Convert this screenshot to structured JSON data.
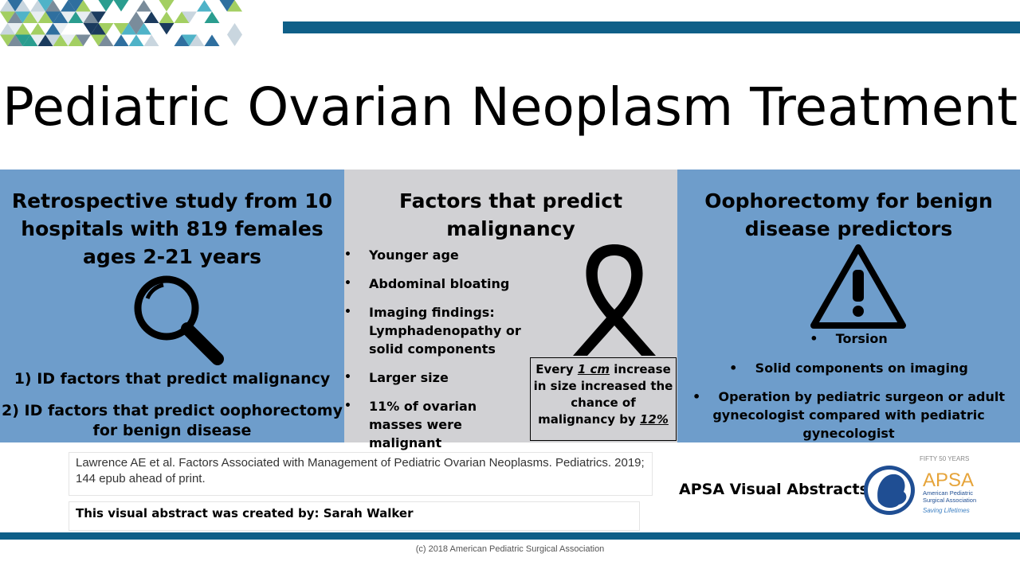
{
  "title": "Pediatric Ovarian Neoplasm Treatment",
  "panel_left": {
    "heading_lines": [
      "Retrospective study from 10",
      "hospitals with 819 females",
      "ages 2-21 years"
    ],
    "aim1": "1) ID factors that predict malignancy",
    "aim2_lines": [
      "2) ID factors that predict oophorectomy",
      "for benign disease"
    ]
  },
  "panel_middle": {
    "heading_lines": [
      "Factors that predict",
      "malignancy"
    ],
    "factors": [
      "Younger age",
      "Abdominal bloating",
      "Imaging findings: Lymphadenopathy or solid components",
      "Larger size",
      "11% of ovarian masses were malignant"
    ],
    "callout": {
      "prefix": "Every ",
      "size": "1 cm",
      "middle": " increase in size increased the chance of malignancy by ",
      "pct": "12%"
    }
  },
  "panel_right": {
    "heading_lines": [
      "Oophorectomy for benign",
      "disease predictors"
    ],
    "items": [
      "Torsion",
      "Solid components on imaging",
      "Operation by pediatric surgeon or adult gynecologist compared with pediatric gynecologist"
    ]
  },
  "reference": "Lawrence AE et al. Factors Associated with Management of Pediatric Ovarian Neoplasms. Pediatrics. 2019; 144 epub ahead of print.",
  "credit": "This visual abstract was created by: Sarah Walker",
  "brand": "APSA Visual Abstracts",
  "logo": {
    "anniversary": "FIFTY 50 YEARS",
    "acronym": "APSA",
    "org_line1": "American Pediatric",
    "org_line2": "Surgical Association",
    "tagline": "Saving Lifetimes"
  },
  "copyright": "(c) 2018 American Pediatric Surgical Association",
  "colors": {
    "panel_blue": "#6e9dcb",
    "panel_gray": "#d1d1d4",
    "bar_blue": "#0f5f88"
  }
}
